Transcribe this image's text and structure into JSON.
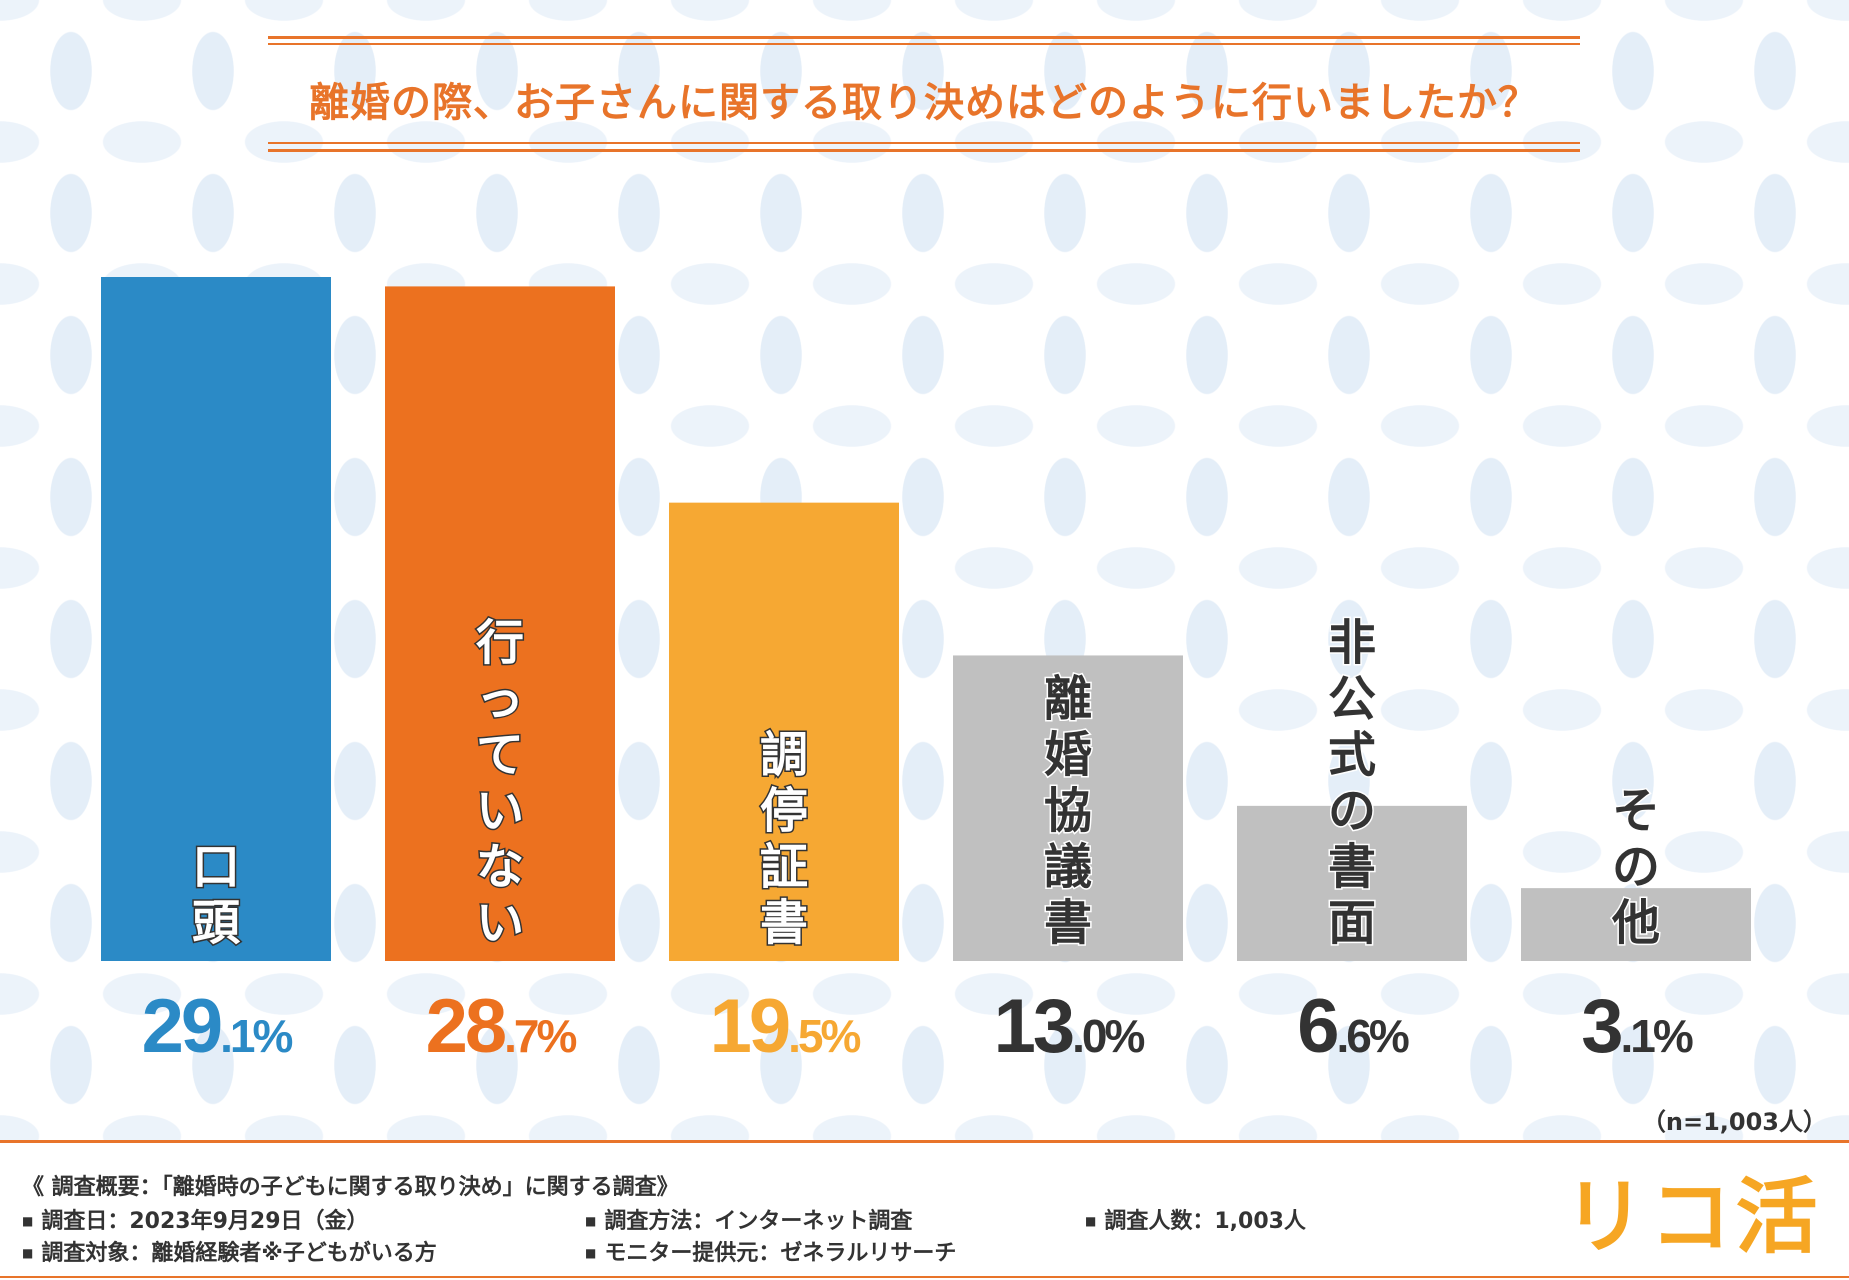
{
  "title": "離婚の際、お子さんに関する取り決めはどのように行いましたか？",
  "chart_data": {
    "type": "bar",
    "title": "離婚の際、お子さんに関する取り決めはどのように行いましたか？",
    "categories": [
      "口頭",
      "行っていない",
      "調停証書",
      "離婚協議書",
      "非公式の書面",
      "その他"
    ],
    "values": [
      29.1,
      28.7,
      19.5,
      13.0,
      6.6,
      3.1
    ],
    "value_labels": [
      "29.1%",
      "28.7%",
      "19.5%",
      "13.0%",
      "6.6%",
      "3.1%"
    ],
    "unit": "%",
    "colors": [
      "#2b8ac6",
      "#ec711f",
      "#f6a833",
      "#c0c0c0",
      "#c0c0c0",
      "#c0c0c0"
    ],
    "label_colors": [
      "#2b8ac6",
      "#ec711f",
      "#f6a833",
      "#333333",
      "#333333",
      "#333333"
    ],
    "xlabel": "",
    "ylabel": "",
    "ylim": [
      0,
      29.1
    ],
    "grid": false,
    "legend": "none"
  },
  "sample_note": "（n=1,003人）",
  "survey": {
    "heading": "《 調査概要：「離婚時の子どもに関する取り決め」に関する調査》",
    "date": "調査日：2023年9月29日（金）",
    "method": "調査方法：インターネット調査",
    "count": "調査人数：1,003人",
    "target": "調査対象：離婚経験者※子どもがいる方",
    "provider": "モニター提供元：ゼネラルリサーチ"
  },
  "logo_text": "リコ活"
}
